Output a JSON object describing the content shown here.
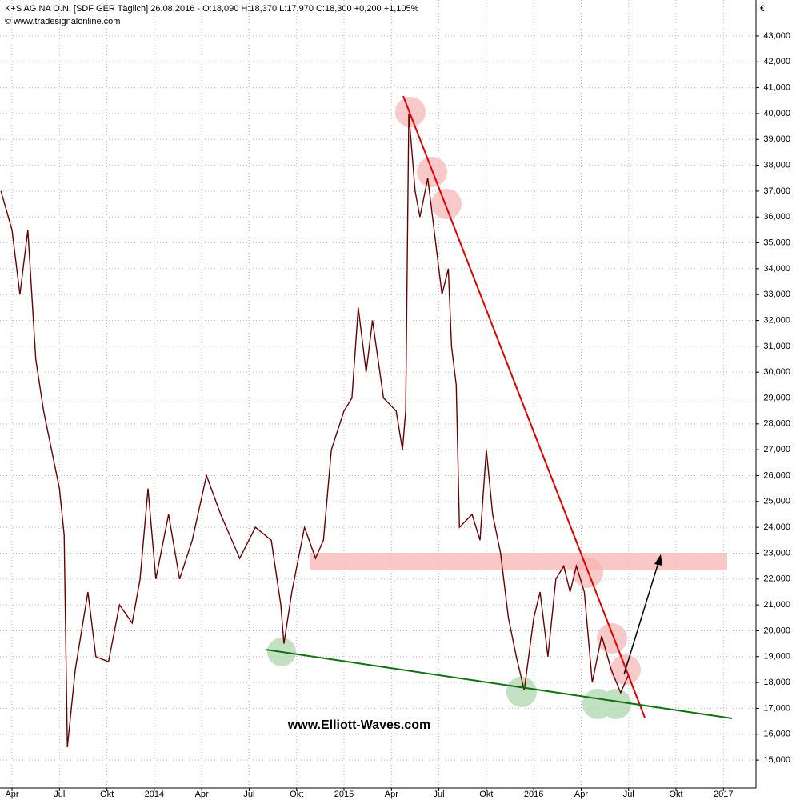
{
  "chart_data": {
    "type": "line",
    "title": "K+S AG NA O.N. [SDF GER  Täglich] 26.08.2016 - O:18,090 H:18,370 L:17,970 C:18,300 +0,200 +1,105%",
    "subtitle": "© www.tradesignalonline.com",
    "y_axis_label": "€",
    "annotation": "www.Elliott-Waves.com",
    "grid": true,
    "xlim": [
      -0.76,
      47.06
    ],
    "ylim": [
      13.92,
      44.39
    ],
    "xticks": [
      {
        "value": 0,
        "label": "Apr"
      },
      {
        "value": 3,
        "label": "Jul"
      },
      {
        "value": 6,
        "label": "Okt"
      },
      {
        "value": 9,
        "label": "2014"
      },
      {
        "value": 12,
        "label": "Apr"
      },
      {
        "value": 15,
        "label": "Jul"
      },
      {
        "value": 18,
        "label": "Okt"
      },
      {
        "value": 21,
        "label": "2015"
      },
      {
        "value": 24,
        "label": "Apr"
      },
      {
        "value": 27,
        "label": "Jul"
      },
      {
        "value": 30,
        "label": "Okt"
      },
      {
        "value": 33,
        "label": "2016"
      },
      {
        "value": 36,
        "label": "Apr"
      },
      {
        "value": 39,
        "label": "Jul"
      },
      {
        "value": 42,
        "label": "Okt"
      },
      {
        "value": 45,
        "label": "2017"
      }
    ],
    "yticks": [
      {
        "value": 15,
        "label": "15,000"
      },
      {
        "value": 16,
        "label": "16,000"
      },
      {
        "value": 17,
        "label": "17,000"
      },
      {
        "value": 18,
        "label": "18,000"
      },
      {
        "value": 19,
        "label": "19,000"
      },
      {
        "value": 20,
        "label": "20,000"
      },
      {
        "value": 21,
        "label": "21,000"
      },
      {
        "value": 22,
        "label": "22,000"
      },
      {
        "value": 23,
        "label": "23,000"
      },
      {
        "value": 24,
        "label": "24,000"
      },
      {
        "value": 25,
        "label": "25,000"
      },
      {
        "value": 26,
        "label": "26,000"
      },
      {
        "value": 27,
        "label": "27,000"
      },
      {
        "value": 28,
        "label": "28,000"
      },
      {
        "value": 29,
        "label": "29,000"
      },
      {
        "value": 30,
        "label": "30,000"
      },
      {
        "value": 31,
        "label": "31,000"
      },
      {
        "value": 32,
        "label": "32,000"
      },
      {
        "value": 33,
        "label": "33,000"
      },
      {
        "value": 34,
        "label": "34,000"
      },
      {
        "value": 35,
        "label": "35,000"
      },
      {
        "value": 36,
        "label": "36,000"
      },
      {
        "value": 37,
        "label": "37,000"
      },
      {
        "value": 38,
        "label": "38,000"
      },
      {
        "value": 39,
        "label": "39,000"
      },
      {
        "value": 40,
        "label": "40,000"
      },
      {
        "value": 41,
        "label": "41,000"
      },
      {
        "value": 42,
        "label": "42,000"
      },
      {
        "value": 43,
        "label": "43,000"
      }
    ],
    "x": [
      -0.7,
      0,
      0.5,
      1.0,
      1.5,
      2.0,
      2.5,
      3.0,
      3.3,
      3.5,
      4.0,
      4.8,
      5.3,
      6.1,
      6.8,
      7.6,
      8.1,
      8.6,
      9.1,
      9.9,
      10.6,
      11.4,
      12.3,
      13.2,
      14.4,
      15.4,
      16.4,
      17.0,
      17.2,
      17.7,
      18.5,
      19.2,
      19.7,
      20.2,
      21.0,
      21.5,
      21.9,
      22.4,
      22.8,
      23.5,
      24.3,
      24.7,
      24.9,
      25.1,
      25.5,
      25.8,
      26.3,
      26.8,
      27.2,
      27.6,
      27.8,
      28.1,
      28.3,
      29.1,
      29.6,
      30.0,
      30.4,
      30.9,
      31.4,
      31.9,
      32.4,
      33.0,
      33.4,
      33.9,
      34.4,
      34.9,
      35.3,
      35.7,
      36.2,
      36.7,
      37.3,
      37.9,
      38.5,
      39.0
    ],
    "series": [
      {
        "name": "K+S AG NA O.N.",
        "color": "#6b0000",
        "values": [
          37.0,
          35.5,
          33.0,
          35.5,
          30.5,
          28.5,
          27.0,
          25.5,
          23.7,
          15.5,
          18.5,
          21.5,
          19.0,
          18.8,
          21.0,
          20.3,
          22.0,
          25.5,
          22.0,
          24.5,
          22.0,
          23.5,
          26.0,
          24.5,
          22.8,
          24.0,
          23.5,
          21.0,
          19.5,
          21.5,
          24.0,
          22.8,
          23.5,
          27.0,
          28.5,
          29.0,
          32.5,
          30.0,
          32.0,
          29.0,
          28.5,
          27.0,
          28.5,
          40.0,
          37.0,
          36.0,
          37.5,
          35.0,
          33.0,
          34.0,
          31.0,
          29.5,
          24.0,
          24.5,
          23.5,
          27.0,
          24.5,
          23.0,
          20.5,
          19.0,
          17.7,
          20.5,
          21.5,
          19.0,
          22.0,
          22.5,
          21.5,
          22.5,
          21.5,
          18.0,
          19.8,
          18.5,
          17.6,
          18.3
        ]
      }
    ]
  }
}
